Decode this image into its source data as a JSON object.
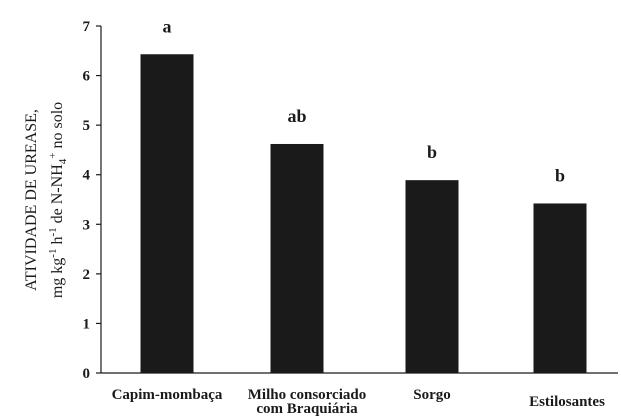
{
  "chart_data": {
    "type": "bar",
    "categories": [
      "Capim-mombaça",
      "Milho consorciado com Braquiária",
      "Sorgo",
      "Estilosantes"
    ],
    "category_lines": [
      [
        "Capim-mombaça"
      ],
      [
        "Milho consorciado",
        "com Braquiária"
      ],
      [
        "Sorgo"
      ],
      [
        "Estilosantes"
      ]
    ],
    "values": [
      6.43,
      4.62,
      3.89,
      3.42
    ],
    "significance_labels": [
      "a",
      "ab",
      "b",
      "b"
    ],
    "ylabel_line1": "ATIVIDADE DE UREASE,",
    "ylabel_line2": {
      "p1": "mg kg",
      "sup1": "-1",
      "p2": " h",
      "sup2": "-1",
      "p3": " de N-NH",
      "sub": "4",
      "sup3": "+",
      "p4": " no solo"
    },
    "ylim": [
      0,
      7
    ],
    "yticks": [
      "0",
      "1",
      "2",
      "3",
      "4",
      "5",
      "6",
      "7"
    ],
    "bar_color": "#1a1a1a",
    "grid": false,
    "legend": "none"
  }
}
